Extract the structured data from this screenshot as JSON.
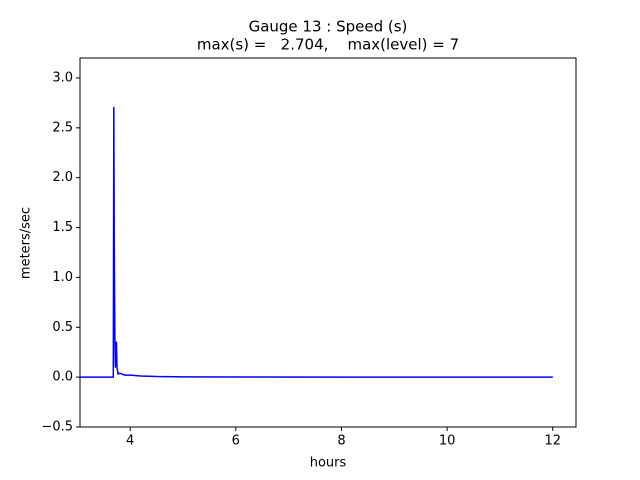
{
  "chart_data": {
    "type": "line",
    "title": "Gauge 13 : Speed (s)",
    "subtitle": "max(s) =   2.704,    max(level) = 7",
    "x_label": "hours",
    "y_label": "meters/sec",
    "x": [
      3.05,
      3.6,
      3.68,
      3.69,
      3.7,
      3.71,
      3.72,
      3.73,
      3.74,
      3.75,
      3.77,
      3.8,
      3.9,
      4.0,
      4.2,
      4.5,
      5.0,
      6.0,
      8,
      10,
      12
    ],
    "series": [
      {
        "name": "speed",
        "color": "#0000ff",
        "values": [
          0,
          0,
          0,
          2.704,
          1.2,
          0.4,
          0.1,
          0.3,
          0.35,
          0.1,
          0.03,
          0.04,
          0.02,
          0.02,
          0.012,
          0.006,
          0.003,
          0.001,
          0,
          0,
          0
        ]
      }
    ],
    "xlim": [
      3.05,
      12.44
    ],
    "ylim": [
      -0.5,
      3.2
    ],
    "xticks": [
      4,
      6,
      8,
      10,
      12
    ],
    "yticks": [
      {
        "value": -0.5,
        "label": "−0.5"
      },
      {
        "value": 0,
        "label": "0.0"
      },
      {
        "value": 0.5,
        "label": "0.5"
      },
      {
        "value": 1,
        "label": "1.0"
      },
      {
        "value": 1.5,
        "label": "1.5"
      },
      {
        "value": 2,
        "label": "2.0"
      },
      {
        "value": 2.5,
        "label": "2.5"
      },
      {
        "value": 3,
        "label": "3.0"
      }
    ],
    "grid": false
  }
}
